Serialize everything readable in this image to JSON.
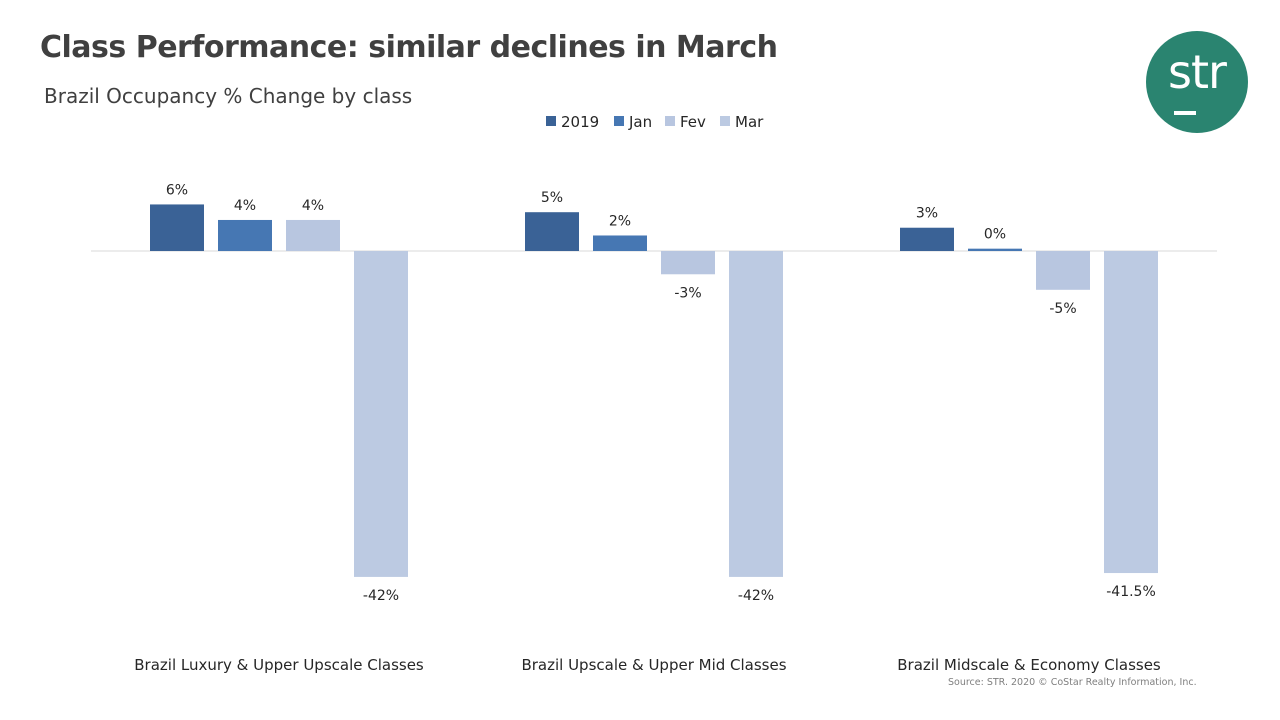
{
  "slide": {
    "title": "Class Performance: similar declines in March",
    "subtitle": "Brazil Occupancy % Change by class",
    "source": "Source: STR. 2020 © CoStar Realty Information, Inc.",
    "logo_text": "str",
    "logo_color": "#2a8470"
  },
  "chart_data": {
    "type": "bar",
    "categories": [
      "Brazil Luxury & Upper Upscale Classes",
      "Brazil Upscale & Upper Mid Classes",
      "Brazil Midscale & Economy Classes"
    ],
    "series": [
      {
        "name": "2019",
        "color": "#3a6296",
        "values": [
          6,
          5,
          3
        ],
        "labels": [
          "6%",
          "5%",
          "3%"
        ]
      },
      {
        "name": "Jan",
        "color": "#4677b3",
        "values": [
          4,
          2,
          0.3
        ],
        "labels": [
          "4%",
          "2%",
          "0%"
        ]
      },
      {
        "name": "Fev",
        "color": "#b8c6e0",
        "values": [
          4,
          -3,
          -5
        ],
        "labels": [
          "4%",
          "-3%",
          "-5%"
        ]
      },
      {
        "name": "Mar",
        "color": "#bccae2",
        "values": [
          -42,
          -42,
          -41.5
        ],
        "labels": [
          "-42%",
          "-42%",
          "-41.5%"
        ]
      }
    ],
    "legend_position": "top-center",
    "grid": false,
    "ylim": [
      -44,
      10
    ]
  }
}
